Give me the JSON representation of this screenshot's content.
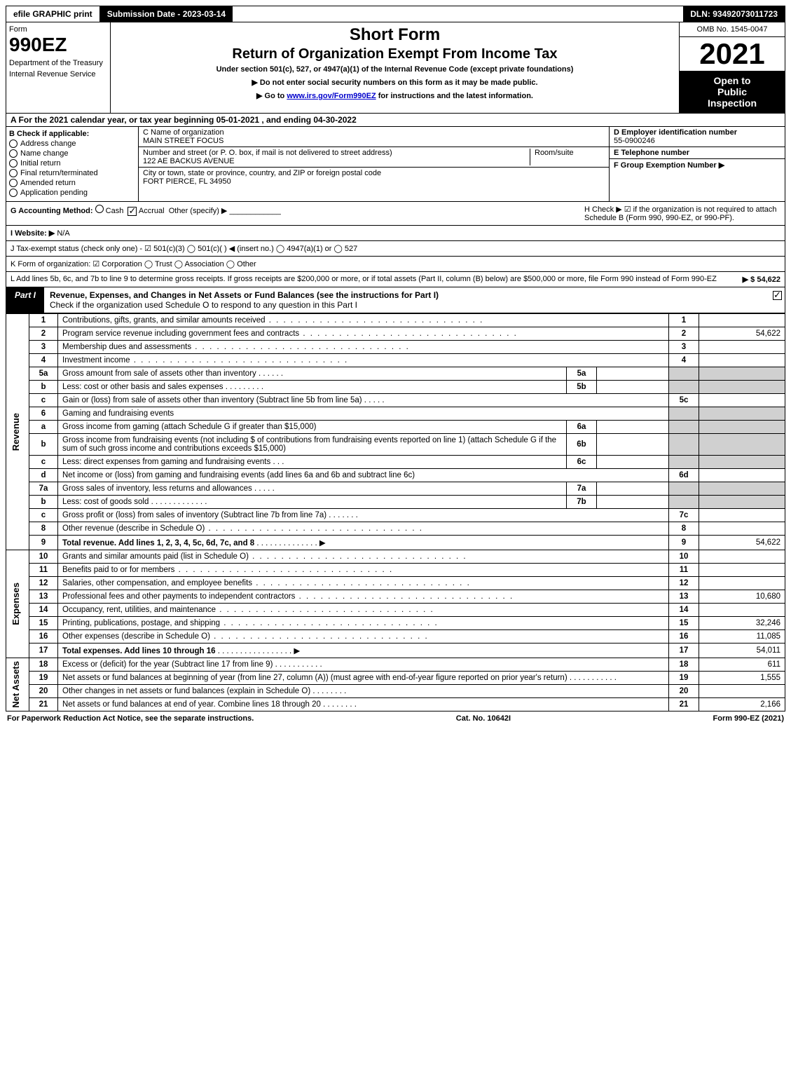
{
  "top_bar": {
    "efile": "efile GRAPHIC print",
    "submission": "Submission Date - 2023-03-14",
    "dln": "DLN: 93492073011723"
  },
  "header": {
    "form_label": "Form",
    "form_num": "990EZ",
    "dept1": "Department of the Treasury",
    "dept2": "Internal Revenue Service",
    "short_form": "Short Form",
    "return_title": "Return of Organization Exempt From Income Tax",
    "under_section": "Under section 501(c), 527, or 4947(a)(1) of the Internal Revenue Code (except private foundations)",
    "instr1": "▶ Do not enter social security numbers on this form as it may be made public.",
    "instr2_pre": "▶ Go to ",
    "instr2_link": "www.irs.gov/Form990EZ",
    "instr2_post": " for instructions and the latest information.",
    "omb": "OMB No. 1545-0047",
    "year": "2021",
    "open1": "Open to",
    "open2": "Public",
    "open3": "Inspection"
  },
  "row_a": "A  For the 2021 calendar year, or tax year beginning 05-01-2021 , and ending 04-30-2022",
  "section_b": {
    "title": "B  Check if applicable:",
    "items": [
      "Address change",
      "Name change",
      "Initial return",
      "Final return/terminated",
      "Amended return",
      "Application pending"
    ]
  },
  "section_c": {
    "label": "C Name of organization",
    "name": "MAIN STREET FOCUS",
    "street_label": "Number and street (or P. O. box, if mail is not delivered to street address)",
    "street": "122 AE BACKUS AVENUE",
    "room_label": "Room/suite",
    "city_label": "City or town, state or province, country, and ZIP or foreign postal code",
    "city": "FORT PIERCE, FL  34950"
  },
  "section_def": {
    "d_label": "D Employer identification number",
    "d_val": "55-0900246",
    "e_label": "E Telephone number",
    "f_label": "F Group Exemption Number  ▶"
  },
  "row_g": {
    "label": "G Accounting Method:",
    "cash": "Cash",
    "accrual": "Accrual",
    "other": "Other (specify) ▶"
  },
  "row_h": "H  Check ▶ ☑ if the organization is not required to attach Schedule B (Form 990, 990-EZ, or 990-PF).",
  "row_i": {
    "label": "I Website: ▶",
    "val": "N/A"
  },
  "row_j": "J Tax-exempt status (check only one) - ☑ 501(c)(3)  ◯ 501(c)(  ) ◀ (insert no.)  ◯ 4947(a)(1) or  ◯ 527",
  "row_k": "K Form of organization:  ☑ Corporation  ◯ Trust  ◯ Association  ◯ Other",
  "row_l": {
    "text": "L Add lines 5b, 6c, and 7b to line 9 to determine gross receipts. If gross receipts are $200,000 or more, or if total assets (Part II, column (B) below) are $500,000 or more, file Form 990 instead of Form 990-EZ",
    "amount": "▶ $ 54,622"
  },
  "part1": {
    "tab": "Part I",
    "title": "Revenue, Expenses, and Changes in Net Assets or Fund Balances (see the instructions for Part I)",
    "subtitle": "Check if the organization used Schedule O to respond to any question in this Part I"
  },
  "sections": {
    "revenue": "Revenue",
    "expenses": "Expenses",
    "netassets": "Net Assets"
  },
  "lines": {
    "l1": {
      "n": "1",
      "d": "Contributions, gifts, grants, and similar amounts received",
      "num": "1",
      "amt": ""
    },
    "l2": {
      "n": "2",
      "d": "Program service revenue including government fees and contracts",
      "num": "2",
      "amt": "54,622"
    },
    "l3": {
      "n": "3",
      "d": "Membership dues and assessments",
      "num": "3",
      "amt": ""
    },
    "l4": {
      "n": "4",
      "d": "Investment income",
      "num": "4",
      "amt": ""
    },
    "l5a": {
      "n": "5a",
      "d": "Gross amount from sale of assets other than inventory",
      "ml": "5a"
    },
    "l5b": {
      "n": "b",
      "d": "Less: cost or other basis and sales expenses",
      "ml": "5b"
    },
    "l5c": {
      "n": "c",
      "d": "Gain or (loss) from sale of assets other than inventory (Subtract line 5b from line 5a)",
      "num": "5c",
      "amt": ""
    },
    "l6": {
      "n": "6",
      "d": "Gaming and fundraising events"
    },
    "l6a": {
      "n": "a",
      "d": "Gross income from gaming (attach Schedule G if greater than $15,000)",
      "ml": "6a"
    },
    "l6b": {
      "n": "b",
      "d": "Gross income from fundraising events (not including $              of contributions from fundraising events reported on line 1) (attach Schedule G if the sum of such gross income and contributions exceeds $15,000)",
      "ml": "6b"
    },
    "l6c": {
      "n": "c",
      "d": "Less: direct expenses from gaming and fundraising events",
      "ml": "6c"
    },
    "l6d": {
      "n": "d",
      "d": "Net income or (loss) from gaming and fundraising events (add lines 6a and 6b and subtract line 6c)",
      "num": "6d",
      "amt": ""
    },
    "l7a": {
      "n": "7a",
      "d": "Gross sales of inventory, less returns and allowances",
      "ml": "7a"
    },
    "l7b": {
      "n": "b",
      "d": "Less: cost of goods sold",
      "ml": "7b"
    },
    "l7c": {
      "n": "c",
      "d": "Gross profit or (loss) from sales of inventory (Subtract line 7b from line 7a)",
      "num": "7c",
      "amt": ""
    },
    "l8": {
      "n": "8",
      "d": "Other revenue (describe in Schedule O)",
      "num": "8",
      "amt": ""
    },
    "l9": {
      "n": "9",
      "d": "Total revenue. Add lines 1, 2, 3, 4, 5c, 6d, 7c, and 8",
      "num": "9",
      "amt": "54,622"
    },
    "l10": {
      "n": "10",
      "d": "Grants and similar amounts paid (list in Schedule O)",
      "num": "10",
      "amt": ""
    },
    "l11": {
      "n": "11",
      "d": "Benefits paid to or for members",
      "num": "11",
      "amt": ""
    },
    "l12": {
      "n": "12",
      "d": "Salaries, other compensation, and employee benefits",
      "num": "12",
      "amt": ""
    },
    "l13": {
      "n": "13",
      "d": "Professional fees and other payments to independent contractors",
      "num": "13",
      "amt": "10,680"
    },
    "l14": {
      "n": "14",
      "d": "Occupancy, rent, utilities, and maintenance",
      "num": "14",
      "amt": ""
    },
    "l15": {
      "n": "15",
      "d": "Printing, publications, postage, and shipping",
      "num": "15",
      "amt": "32,246"
    },
    "l16": {
      "n": "16",
      "d": "Other expenses (describe in Schedule O)",
      "num": "16",
      "amt": "11,085"
    },
    "l17": {
      "n": "17",
      "d": "Total expenses. Add lines 10 through 16",
      "num": "17",
      "amt": "54,011"
    },
    "l18": {
      "n": "18",
      "d": "Excess or (deficit) for the year (Subtract line 17 from line 9)",
      "num": "18",
      "amt": "611"
    },
    "l19": {
      "n": "19",
      "d": "Net assets or fund balances at beginning of year (from line 27, column (A)) (must agree with end-of-year figure reported on prior year's return)",
      "num": "19",
      "amt": "1,555"
    },
    "l20": {
      "n": "20",
      "d": "Other changes in net assets or fund balances (explain in Schedule O)",
      "num": "20",
      "amt": ""
    },
    "l21": {
      "n": "21",
      "d": "Net assets or fund balances at end of year. Combine lines 18 through 20",
      "num": "21",
      "amt": "2,166"
    }
  },
  "footer": {
    "left": "For Paperwork Reduction Act Notice, see the separate instructions.",
    "center": "Cat. No. 10642I",
    "right": "Form 990-EZ (2021)"
  }
}
